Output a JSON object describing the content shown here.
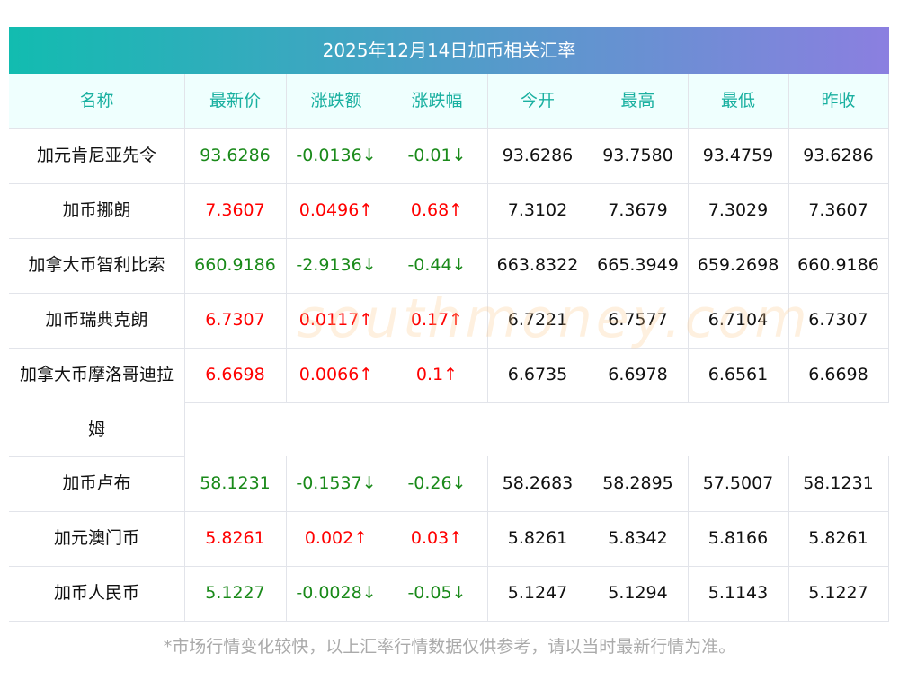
{
  "title": "2025年12月14日加币相关汇率",
  "watermark": "southmoney.com 南方财富网",
  "headers": [
    "名称",
    "最新价",
    "涨跌额",
    "涨跌幅",
    "今开",
    "最高",
    "最低",
    "昨收"
  ],
  "rows": [
    {
      "name": "加元肯尼亚先令",
      "trend": "down",
      "latest": "93.6286",
      "change": "-0.0136↓",
      "pct": "-0.01↓",
      "open": "93.6286",
      "high": "93.7580",
      "low": "93.4759",
      "prev": "93.6286"
    },
    {
      "name": "加币挪朗",
      "trend": "up",
      "latest": "7.3607",
      "change": "0.0496↑",
      "pct": "0.68↑",
      "open": "7.3102",
      "high": "7.3679",
      "low": "7.3029",
      "prev": "7.3607"
    },
    {
      "name": "加拿大币智利比索",
      "trend": "down",
      "latest": "660.9186",
      "change": "-2.9136↓",
      "pct": "-0.44↓",
      "open": "663.8322",
      "high": "665.3949",
      "low": "659.2698",
      "prev": "660.9186"
    },
    {
      "name": "加币瑞典克朗",
      "trend": "up",
      "latest": "6.7307",
      "change": "0.0117↑",
      "pct": "0.17↑",
      "open": "6.7221",
      "high": "6.7577",
      "low": "6.7104",
      "prev": "6.7307"
    },
    {
      "name": "加拿大币摩洛哥迪拉姆",
      "trend": "up",
      "latest": "6.6698",
      "change": "0.0066↑",
      "pct": "0.1↑",
      "open": "6.6735",
      "high": "6.6978",
      "low": "6.6561",
      "prev": "6.6698"
    },
    {
      "name": "加币卢布",
      "trend": "down",
      "latest": "58.1231",
      "change": "-0.1537↓",
      "pct": "-0.26↓",
      "open": "58.2683",
      "high": "58.2895",
      "low": "57.5007",
      "prev": "58.1231"
    },
    {
      "name": "加元澳门币",
      "trend": "up",
      "latest": "5.8261",
      "change": "0.002↑",
      "pct": "0.03↑",
      "open": "5.8261",
      "high": "5.8342",
      "low": "5.8166",
      "prev": "5.8261"
    },
    {
      "name": "加币人民币",
      "trend": "down",
      "latest": "5.1227",
      "change": "-0.0028↓",
      "pct": "-0.05↓",
      "open": "5.1247",
      "high": "5.1294",
      "low": "5.1143",
      "prev": "5.1227"
    }
  ],
  "note": "*市场行情变化较快，以上汇率行情数据仅供参考，请以当时最新行情为准。"
}
